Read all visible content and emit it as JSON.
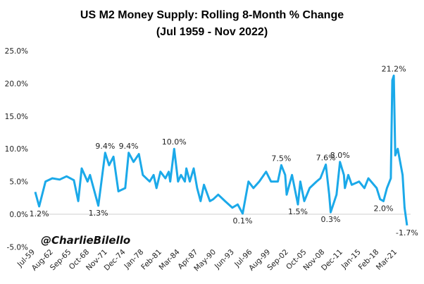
{
  "chart_data": {
    "type": "line",
    "title": "US M2 Money Supply: Rolling 8-Month % Change",
    "subtitle": "(Jul 1959 - Nov 2022)",
    "watermark": "@CharlieBilello",
    "xlabel": "",
    "ylabel": "",
    "ylim": [
      -5,
      25
    ],
    "grid": false,
    "legend": "none",
    "line_color": "#1ba9e9",
    "y_ticks": [
      "25.0%",
      "20.0%",
      "15.0%",
      "10.0%",
      "5.0%",
      "0.0%",
      "-5.0%"
    ],
    "y_tick_values": [
      25,
      20,
      15,
      10,
      5,
      0,
      -5
    ],
    "x_ticks": [
      "Jul-59",
      "Aug-62",
      "Sep-65",
      "Oct-68",
      "Nov-71",
      "Dec-74",
      "Jan-78",
      "Feb-81",
      "Mar-84",
      "Apr-87",
      "May-90",
      "Jun-93",
      "Jul-96",
      "Aug-99",
      "Sep-02",
      "Oct-05",
      "Nov-08",
      "Dec-11",
      "Jan-15",
      "Feb-18",
      "Mar-21"
    ],
    "series": [
      {
        "x": [
          "1959-07",
          "1960-03",
          "1961-04",
          "1962-06",
          "1963-09",
          "1964-11",
          "1966-02",
          "1966-11",
          "1967-06",
          "1968-06",
          "1968-11",
          "1970-04",
          "1971-06",
          "1972-02",
          "1972-11",
          "1973-09",
          "1974-11",
          "1975-06",
          "1976-04",
          "1977-03",
          "1977-11",
          "1979-01",
          "1979-09",
          "1980-03",
          "1980-11",
          "1981-09",
          "1982-04",
          "1982-07",
          "1983-03",
          "1983-11",
          "1984-05",
          "1985-01",
          "1985-04",
          "1985-11",
          "1986-07",
          "1987-02",
          "1987-09",
          "1988-04",
          "1989-04",
          "1989-11",
          "1990-09",
          "1991-11",
          "1993-02",
          "1994-01",
          "1994-11",
          "1995-11",
          "1996-09",
          "1997-09",
          "1998-11",
          "1999-09",
          "2000-11",
          "2001-06",
          "2002-02",
          "2002-05",
          "2003-04",
          "2004-04",
          "2004-09",
          "2005-05",
          "2006-04",
          "2007-06",
          "2008-02",
          "2009-01",
          "2009-08",
          "2009-11",
          "2010-11",
          "2011-06",
          "2012-02",
          "2012-04",
          "2012-11",
          "2013-06",
          "2014-09",
          "2015-08",
          "2016-04",
          "2017-09",
          "2018-04",
          "2018-11",
          "2019-06",
          "2020-02",
          "2020-05",
          "2020-08",
          "2020-11",
          "2021-04",
          "2022-02",
          "2022-06",
          "2022-11"
        ],
        "values": [
          3.4,
          1.2,
          5.0,
          5.5,
          5.3,
          5.8,
          5.2,
          2.0,
          7.0,
          5.0,
          6.0,
          1.3,
          9.4,
          7.5,
          8.8,
          3.5,
          4.0,
          9.4,
          8.0,
          9.2,
          6.0,
          5.0,
          6.0,
          4.0,
          6.5,
          5.5,
          6.5,
          5.0,
          10.0,
          5.0,
          6.0,
          5.0,
          7.0,
          5.0,
          7.0,
          4.0,
          2.0,
          4.5,
          2.0,
          2.3,
          3.0,
          2.0,
          1.0,
          1.5,
          0.1,
          5.0,
          4.0,
          5.0,
          6.5,
          5.0,
          5.0,
          7.5,
          6.0,
          3.0,
          6.0,
          1.5,
          5.0,
          2.0,
          4.0,
          5.0,
          5.5,
          7.6,
          3.0,
          0.3,
          3.0,
          8.0,
          6.0,
          4.0,
          6.0,
          4.5,
          5.0,
          4.0,
          5.5,
          4.0,
          2.3,
          2.0,
          4.0,
          5.5,
          20.5,
          21.2,
          9.0,
          10.0,
          6.0,
          1.0,
          -1.7
        ]
      }
    ],
    "annotations": [
      {
        "x": "1960-03",
        "value": 1.2,
        "label": "1.2%",
        "pos": "below"
      },
      {
        "x": "1970-04",
        "value": 1.3,
        "label": "1.3%",
        "pos": "below"
      },
      {
        "x": "1971-06",
        "value": 9.4,
        "label": "9.4%",
        "pos": "above"
      },
      {
        "x": "1975-06",
        "value": 9.4,
        "label": "9.4%",
        "pos": "above"
      },
      {
        "x": "1983-03",
        "value": 10.0,
        "label": "10.0%",
        "pos": "above"
      },
      {
        "x": "1994-11",
        "value": 0.1,
        "label": "0.1%",
        "pos": "below"
      },
      {
        "x": "2001-06",
        "value": 7.5,
        "label": "7.5%",
        "pos": "above"
      },
      {
        "x": "2004-04",
        "value": 1.5,
        "label": "1.5%",
        "pos": "below"
      },
      {
        "x": "2009-01",
        "value": 7.6,
        "label": "7.6%",
        "pos": "above"
      },
      {
        "x": "2011-06",
        "value": 8.0,
        "label": "8.0%",
        "pos": "above"
      },
      {
        "x": "2009-11",
        "value": 0.3,
        "label": "0.3%",
        "pos": "below"
      },
      {
        "x": "2018-11",
        "value": 2.0,
        "label": "2.0%",
        "pos": "below"
      },
      {
        "x": "2020-08",
        "value": 21.2,
        "label": "21.2%",
        "pos": "above"
      },
      {
        "x": "2022-11",
        "value": -1.7,
        "label": "-1.7%",
        "pos": "below"
      }
    ]
  }
}
